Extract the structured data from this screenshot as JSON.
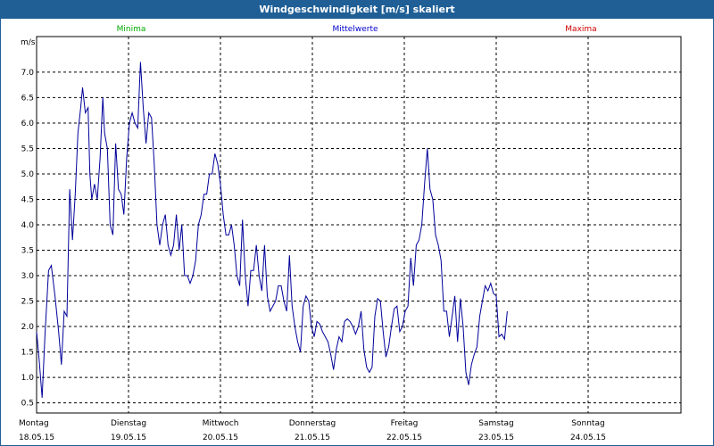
{
  "window": {
    "title": "Windgeschwindigkeit [m/s] skaliert"
  },
  "legend": {
    "min": "Minima",
    "mean": "Mittelwerte",
    "max": "Maxima"
  },
  "colors": {
    "min": "#00aa00",
    "mean": "#0000cc",
    "max": "#cc0000",
    "line": "#00009a",
    "titlebar": "#1f5f96"
  },
  "chart_data": {
    "type": "line",
    "title": "Windgeschwindigkeit [m/s] skaliert",
    "ylabel": "m/s",
    "xlabel": "",
    "ylim": [
      0.3,
      7.7
    ],
    "xlim": [
      0,
      7
    ],
    "grid": true,
    "yticks": [
      "0.5",
      "1.0",
      "1.5",
      "2.0",
      "2.5",
      "3.0",
      "3.5",
      "4.0",
      "4.5",
      "5.0",
      "5.5",
      "6.0",
      "6.5",
      "7.0"
    ],
    "days": [
      {
        "day": "Montag",
        "date": "18.05.15"
      },
      {
        "day": "Dienstag",
        "date": "19.05.15"
      },
      {
        "day": "Mittwoch",
        "date": "20.05.15"
      },
      {
        "day": "Donnerstag",
        "date": "21.05.15"
      },
      {
        "day": "Freitag",
        "date": "22.05.15"
      },
      {
        "day": "Samstag",
        "date": "23.05.15"
      },
      {
        "day": "Sonntag",
        "date": "24.05.15"
      }
    ],
    "series": [
      {
        "name": "Mittelwerte",
        "points": [
          [
            0.0,
            1.9
          ],
          [
            0.03,
            1.3
          ],
          [
            0.06,
            0.6
          ],
          [
            0.09,
            1.8
          ],
          [
            0.13,
            3.1
          ],
          [
            0.16,
            3.2
          ],
          [
            0.2,
            2.6
          ],
          [
            0.24,
            1.9
          ],
          [
            0.27,
            1.25
          ],
          [
            0.3,
            2.3
          ],
          [
            0.33,
            2.2
          ],
          [
            0.36,
            4.7
          ],
          [
            0.39,
            3.7
          ],
          [
            0.42,
            4.6
          ],
          [
            0.45,
            5.8
          ],
          [
            0.48,
            6.3
          ],
          [
            0.5,
            6.7
          ],
          [
            0.53,
            6.2
          ],
          [
            0.56,
            6.3
          ],
          [
            0.58,
            5.0
          ],
          [
            0.6,
            4.5
          ],
          [
            0.63,
            4.8
          ],
          [
            0.66,
            4.5
          ],
          [
            0.69,
            5.3
          ],
          [
            0.72,
            6.5
          ],
          [
            0.74,
            5.8
          ],
          [
            0.77,
            5.5
          ],
          [
            0.8,
            4.0
          ],
          [
            0.83,
            3.8
          ],
          [
            0.86,
            5.6
          ],
          [
            0.89,
            4.7
          ],
          [
            0.92,
            4.6
          ],
          [
            0.95,
            4.2
          ],
          [
            0.98,
            5.3
          ],
          [
            1.01,
            6.0
          ],
          [
            1.04,
            6.2
          ],
          [
            1.07,
            6.0
          ],
          [
            1.1,
            5.9
          ],
          [
            1.13,
            7.2
          ],
          [
            1.16,
            6.3
          ],
          [
            1.19,
            5.6
          ],
          [
            1.22,
            6.2
          ],
          [
            1.25,
            6.1
          ],
          [
            1.28,
            5.2
          ],
          [
            1.31,
            4.0
          ],
          [
            1.34,
            3.6
          ],
          [
            1.37,
            4.0
          ],
          [
            1.4,
            4.2
          ],
          [
            1.43,
            3.6
          ],
          [
            1.46,
            3.4
          ],
          [
            1.49,
            3.6
          ],
          [
            1.52,
            4.2
          ],
          [
            1.55,
            3.5
          ],
          [
            1.58,
            4.0
          ],
          [
            1.61,
            3.0
          ],
          [
            1.64,
            3.0
          ],
          [
            1.67,
            2.85
          ],
          [
            1.7,
            3.0
          ],
          [
            1.73,
            3.3
          ],
          [
            1.76,
            4.0
          ],
          [
            1.79,
            4.2
          ],
          [
            1.82,
            4.6
          ],
          [
            1.85,
            4.6
          ],
          [
            1.88,
            5.0
          ],
          [
            1.91,
            5.0
          ],
          [
            1.94,
            5.4
          ],
          [
            1.97,
            5.2
          ],
          [
            2.0,
            4.8
          ],
          [
            2.03,
            4.2
          ],
          [
            2.06,
            3.8
          ],
          [
            2.09,
            3.8
          ],
          [
            2.12,
            4.0
          ],
          [
            2.15,
            3.6
          ],
          [
            2.18,
            3.0
          ],
          [
            2.21,
            2.8
          ],
          [
            2.24,
            4.1
          ],
          [
            2.27,
            3.0
          ],
          [
            2.3,
            2.4
          ],
          [
            2.33,
            3.1
          ],
          [
            2.36,
            3.1
          ],
          [
            2.39,
            3.6
          ],
          [
            2.42,
            3.0
          ],
          [
            2.45,
            2.7
          ],
          [
            2.48,
            3.6
          ],
          [
            2.51,
            2.6
          ],
          [
            2.54,
            2.3
          ],
          [
            2.57,
            2.4
          ],
          [
            2.6,
            2.5
          ],
          [
            2.63,
            2.8
          ],
          [
            2.66,
            2.8
          ],
          [
            2.69,
            2.5
          ],
          [
            2.72,
            2.3
          ],
          [
            2.75,
            3.4
          ],
          [
            2.78,
            2.4
          ],
          [
            2.81,
            2.0
          ],
          [
            2.84,
            1.7
          ],
          [
            2.87,
            1.5
          ],
          [
            2.9,
            2.4
          ],
          [
            2.93,
            2.6
          ],
          [
            2.96,
            2.5
          ],
          [
            2.99,
            2.0
          ],
          [
            3.02,
            1.8
          ],
          [
            3.05,
            2.1
          ],
          [
            3.08,
            2.05
          ],
          [
            3.11,
            1.9
          ],
          [
            3.14,
            1.8
          ],
          [
            3.17,
            1.7
          ],
          [
            3.2,
            1.45
          ],
          [
            3.23,
            1.15
          ],
          [
            3.26,
            1.55
          ],
          [
            3.29,
            1.8
          ],
          [
            3.32,
            1.7
          ],
          [
            3.35,
            2.1
          ],
          [
            3.38,
            2.15
          ],
          [
            3.41,
            2.1
          ],
          [
            3.44,
            2.0
          ],
          [
            3.47,
            1.85
          ],
          [
            3.5,
            2.0
          ],
          [
            3.53,
            2.3
          ],
          [
            3.56,
            1.55
          ],
          [
            3.59,
            1.2
          ],
          [
            3.62,
            1.1
          ],
          [
            3.65,
            1.2
          ],
          [
            3.68,
            2.2
          ],
          [
            3.71,
            2.55
          ],
          [
            3.74,
            2.5
          ],
          [
            3.77,
            1.9
          ],
          [
            3.8,
            1.4
          ],
          [
            3.83,
            1.6
          ],
          [
            3.86,
            2.0
          ],
          [
            3.89,
            2.35
          ],
          [
            3.92,
            2.4
          ],
          [
            3.95,
            1.9
          ],
          [
            3.98,
            2.0
          ],
          [
            4.01,
            2.3
          ],
          [
            4.04,
            2.4
          ],
          [
            4.07,
            3.35
          ],
          [
            4.1,
            2.8
          ],
          [
            4.13,
            3.6
          ],
          [
            4.16,
            3.7
          ],
          [
            4.19,
            4.0
          ],
          [
            4.22,
            4.8
          ],
          [
            4.25,
            5.5
          ],
          [
            4.28,
            4.7
          ],
          [
            4.31,
            4.5
          ],
          [
            4.34,
            3.8
          ],
          [
            4.37,
            3.6
          ],
          [
            4.4,
            3.3
          ],
          [
            4.43,
            2.3
          ],
          [
            4.46,
            2.3
          ],
          [
            4.49,
            1.8
          ],
          [
            4.52,
            2.2
          ],
          [
            4.55,
            2.6
          ],
          [
            4.58,
            1.7
          ],
          [
            4.61,
            2.55
          ],
          [
            4.64,
            2.0
          ],
          [
            4.67,
            1.1
          ],
          [
            4.7,
            0.85
          ],
          [
            4.73,
            1.25
          ],
          [
            4.76,
            1.45
          ],
          [
            4.79,
            1.6
          ],
          [
            4.82,
            2.2
          ],
          [
            4.85,
            2.5
          ],
          [
            4.88,
            2.8
          ],
          [
            4.91,
            2.7
          ],
          [
            4.94,
            2.85
          ],
          [
            4.97,
            2.65
          ],
          [
            5.0,
            2.6
          ],
          [
            5.03,
            1.8
          ],
          [
            5.06,
            1.85
          ],
          [
            5.09,
            1.75
          ],
          [
            5.12,
            2.3
          ]
        ]
      }
    ]
  }
}
